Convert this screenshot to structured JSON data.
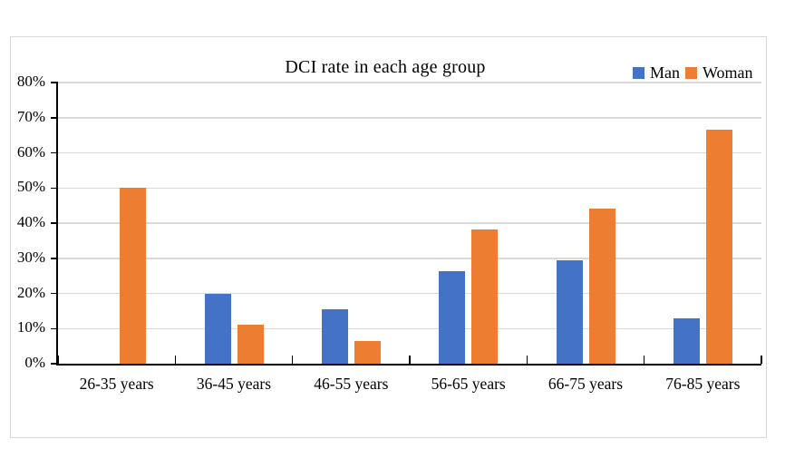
{
  "chart_data": {
    "type": "bar",
    "title": "DCI rate in each age group",
    "categories": [
      "26-35 years",
      "36-45 years",
      "46-55 years",
      "56-65 years",
      "66-75 years",
      "76-85 years"
    ],
    "series": [
      {
        "name": "Man",
        "color": "#4472C4",
        "values": [
          0.0,
          20.0,
          15.4,
          26.3,
          29.4,
          13.0
        ]
      },
      {
        "name": "Woman",
        "color": "#ED7D31",
        "values": [
          50.0,
          11.1,
          6.5,
          38.2,
          44.1,
          66.7
        ]
      }
    ],
    "xlabel": "",
    "ylabel": "",
    "ylim": [
      0,
      80
    ],
    "ytick_step": 10,
    "ytick_labels": [
      "0%",
      "10%",
      "20%",
      "30%",
      "40%",
      "50%",
      "60%",
      "70%",
      "80%"
    ],
    "grid": true,
    "legend_position": "top-right",
    "unit": "%"
  },
  "legend": {
    "man": "Man",
    "woman": "Woman"
  },
  "colors": {
    "man": "#4472C4",
    "woman": "#ED7D31",
    "gridline": "#D9D9D9",
    "axis": "#000000",
    "frame_border": "#D9D9D9",
    "background": "#FFFFFF",
    "text": "#000000"
  }
}
